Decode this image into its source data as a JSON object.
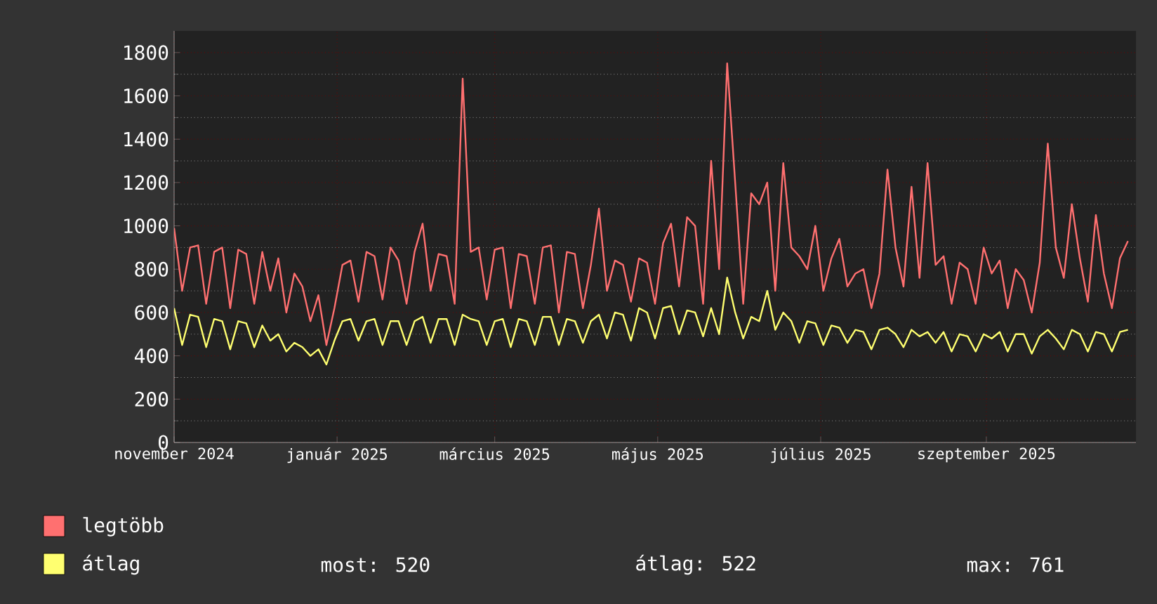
{
  "chart_data": {
    "type": "line",
    "x": [
      "2024-11-01",
      "2024-11-04",
      "2024-11-07",
      "2024-11-10",
      "2024-11-13",
      "2024-11-16",
      "2024-11-19",
      "2024-11-22",
      "2024-11-25",
      "2024-11-28",
      "2024-12-01",
      "2024-12-04",
      "2024-12-07",
      "2024-12-10",
      "2024-12-13",
      "2024-12-16",
      "2024-12-19",
      "2024-12-22",
      "2024-12-25",
      "2024-12-28",
      "2024-12-31",
      "2025-01-03",
      "2025-01-06",
      "2025-01-09",
      "2025-01-12",
      "2025-01-15",
      "2025-01-18",
      "2025-01-21",
      "2025-01-24",
      "2025-01-27",
      "2025-01-30",
      "2025-02-02",
      "2025-02-05",
      "2025-02-08",
      "2025-02-11",
      "2025-02-14",
      "2025-02-17",
      "2025-02-20",
      "2025-02-23",
      "2025-02-26",
      "2025-03-01",
      "2025-03-04",
      "2025-03-07",
      "2025-03-10",
      "2025-03-13",
      "2025-03-16",
      "2025-03-19",
      "2025-03-22",
      "2025-03-25",
      "2025-03-28",
      "2025-03-31",
      "2025-04-03",
      "2025-04-06",
      "2025-04-09",
      "2025-04-12",
      "2025-04-15",
      "2025-04-18",
      "2025-04-21",
      "2025-04-24",
      "2025-04-27",
      "2025-04-30",
      "2025-05-03",
      "2025-05-06",
      "2025-05-09",
      "2025-05-12",
      "2025-05-15",
      "2025-05-18",
      "2025-05-21",
      "2025-05-24",
      "2025-05-27",
      "2025-05-30",
      "2025-06-02",
      "2025-06-05",
      "2025-06-08",
      "2025-06-11",
      "2025-06-14",
      "2025-06-17",
      "2025-06-20",
      "2025-06-23",
      "2025-06-26",
      "2025-06-29",
      "2025-07-02",
      "2025-07-05",
      "2025-07-08",
      "2025-07-11",
      "2025-07-14",
      "2025-07-17",
      "2025-07-20",
      "2025-07-23",
      "2025-07-26",
      "2025-07-29",
      "2025-08-01",
      "2025-08-04",
      "2025-08-07",
      "2025-08-10",
      "2025-08-13",
      "2025-08-16",
      "2025-08-19",
      "2025-08-22",
      "2025-08-25",
      "2025-08-28",
      "2025-08-31",
      "2025-09-03",
      "2025-09-06",
      "2025-09-09",
      "2025-09-12",
      "2025-09-15",
      "2025-09-18",
      "2025-09-21",
      "2025-09-24",
      "2025-09-27",
      "2025-09-30",
      "2025-10-03",
      "2025-10-06",
      "2025-10-09",
      "2025-10-12",
      "2025-10-15",
      "2025-10-18",
      "2025-10-21",
      "2025-10-24"
    ],
    "series": [
      {
        "name": "legtöbb",
        "color": "#ff7070",
        "values": [
          990,
          700,
          900,
          910,
          640,
          880,
          900,
          620,
          890,
          870,
          640,
          880,
          700,
          850,
          600,
          780,
          720,
          560,
          680,
          450,
          620,
          820,
          840,
          650,
          880,
          860,
          660,
          900,
          840,
          640,
          880,
          1010,
          700,
          870,
          860,
          640,
          1680,
          880,
          900,
          660,
          890,
          900,
          620,
          870,
          860,
          640,
          900,
          910,
          600,
          880,
          870,
          620,
          820,
          1080,
          700,
          840,
          820,
          650,
          850,
          830,
          640,
          920,
          1010,
          720,
          1040,
          1000,
          640,
          1300,
          800,
          1750,
          1200,
          640,
          1150,
          1100,
          1200,
          700,
          1290,
          900,
          860,
          800,
          1000,
          700,
          850,
          940,
          720,
          780,
          800,
          620,
          780,
          1260,
          900,
          720,
          1180,
          760,
          1290,
          820,
          860,
          640,
          830,
          800,
          640,
          900,
          780,
          840,
          620,
          800,
          750,
          600,
          830,
          1380,
          900,
          760,
          1100,
          850,
          650,
          1050,
          780,
          620,
          850,
          930
        ]
      },
      {
        "name": "átlag",
        "color": "#ffff70",
        "values": [
          620,
          450,
          590,
          580,
          440,
          570,
          560,
          430,
          560,
          550,
          440,
          540,
          470,
          500,
          420,
          460,
          440,
          400,
          430,
          360,
          470,
          560,
          570,
          470,
          560,
          570,
          450,
          560,
          560,
          450,
          560,
          580,
          460,
          570,
          570,
          450,
          590,
          570,
          560,
          450,
          560,
          570,
          440,
          570,
          560,
          450,
          580,
          580,
          450,
          570,
          560,
          460,
          560,
          590,
          480,
          600,
          590,
          470,
          620,
          600,
          480,
          620,
          630,
          500,
          610,
          600,
          490,
          620,
          500,
          761,
          600,
          480,
          580,
          560,
          700,
          520,
          600,
          560,
          460,
          560,
          550,
          450,
          540,
          530,
          460,
          520,
          510,
          430,
          520,
          530,
          500,
          440,
          520,
          490,
          510,
          460,
          510,
          420,
          500,
          490,
          420,
          500,
          480,
          510,
          420,
          500,
          500,
          410,
          490,
          520,
          480,
          430,
          520,
          500,
          420,
          510,
          500,
          420,
          510,
          520
        ]
      }
    ],
    "xlim": [
      "2024-11-01",
      "2025-10-27"
    ],
    "ylim": [
      0,
      1900
    ],
    "xticks": [
      {
        "value": "2024-11-01",
        "label": "november 2024"
      },
      {
        "value": "2025-01-01",
        "label": "január 2025"
      },
      {
        "value": "2025-03-01",
        "label": "március 2025"
      },
      {
        "value": "2025-05-01",
        "label": "május 2025"
      },
      {
        "value": "2025-07-01",
        "label": "július 2025"
      },
      {
        "value": "2025-09-01",
        "label": "szeptember 2025"
      }
    ],
    "yticks": [
      0,
      200,
      400,
      600,
      800,
      1000,
      1200,
      1400,
      1600,
      1800
    ],
    "grid": true,
    "legend": "bottom",
    "annotations": [
      "most: 520",
      "átlag: 522",
      "max: 761"
    ]
  }
}
